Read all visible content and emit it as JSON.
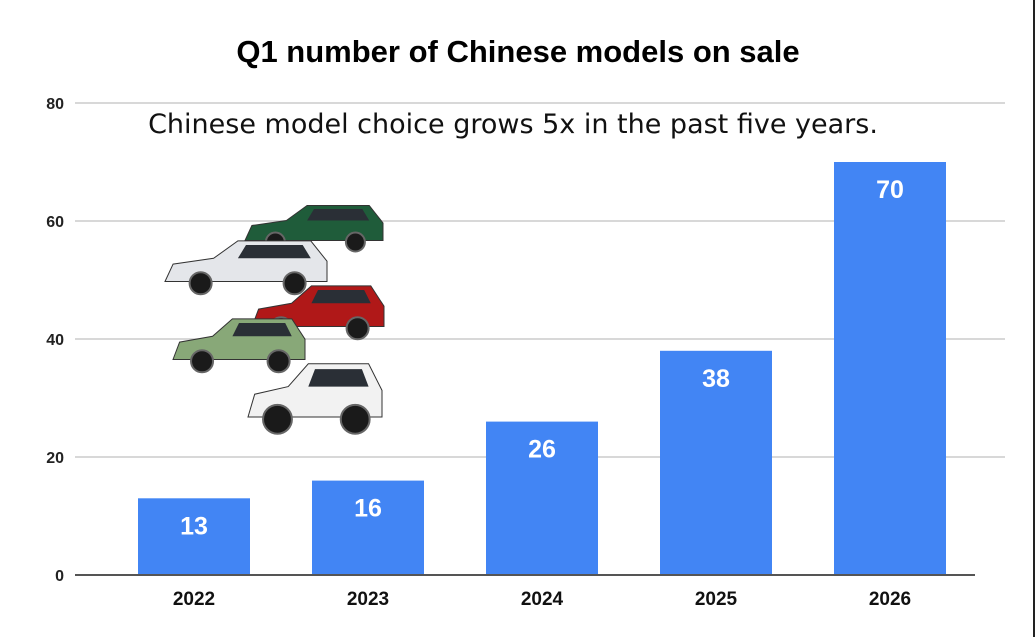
{
  "chart_data": {
    "type": "bar",
    "title": "Q1 number of Chinese models on sale",
    "annotation": "Chinese model choice grows 5x in the past five years.",
    "categories": [
      "2022",
      "2023",
      "2024",
      "2025",
      "2026"
    ],
    "values": [
      13,
      16,
      26,
      38,
      70
    ],
    "data_labels": [
      "13",
      "16",
      "26",
      "38",
      "70"
    ],
    "xlabel": "",
    "ylabel": "",
    "ylim": [
      0,
      80
    ],
    "yticks": [
      "0",
      "20",
      "40",
      "60",
      "80"
    ],
    "grid": true,
    "legend": "none",
    "bar_color": "#4285f4",
    "images": [
      "green-suv",
      "white-pickup-truck",
      "red-suv",
      "green-hatchback",
      "white-van"
    ]
  }
}
